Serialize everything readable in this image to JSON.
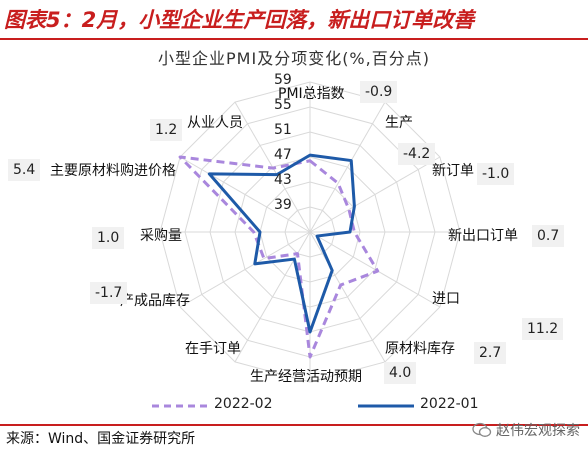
{
  "header": {
    "title": "图表5：2月，小型企业生产回落，新出口订单改善"
  },
  "footer": {
    "source": "来源：Wind、国金证券研究所",
    "watermark": "赵伟宏观探索"
  },
  "legend": {
    "series_a": "2022-02",
    "series_b": "2022-01"
  },
  "colors": {
    "series_a": "#a987dd",
    "series_b": "#1e5aa8",
    "accent": "#c81e1e",
    "grid": "#d9d9d9"
  },
  "chart_data": {
    "type": "radar",
    "title": "小型企业PMI及分项变化(%,百分点)",
    "rlim": [
      35,
      59
    ],
    "ticks": [
      "59",
      "55",
      "51",
      "47",
      "43",
      "39"
    ],
    "categories": [
      {
        "name": "PMI总指数",
        "change": "-0.9"
      },
      {
        "name": "生产",
        "change": "-4.2"
      },
      {
        "name": "新订单",
        "change": "-1.0"
      },
      {
        "name": "新出口订单",
        "change": "0.7"
      },
      {
        "name": "进口",
        "change": "11.2"
      },
      {
        "name": "原材料库存",
        "change": "2.7"
      },
      {
        "name": "生产经营活动预期",
        "change": "4.0"
      },
      {
        "name": "在手订单",
        "change": ""
      },
      {
        "name": "产成品库存",
        "change": "-1.7"
      },
      {
        "name": "采购量",
        "change": "1.0"
      },
      {
        "name": "主要原材料购进价格",
        "change": "5.4"
      },
      {
        "name": "从业人员",
        "change": "1.2"
      }
    ],
    "series": [
      {
        "name": "2022-02",
        "values": [
          46.4,
          44.0,
          42.2,
          42.1,
          47.5,
          44.8,
          55.0,
          39.0,
          43.5,
          44.0,
          59.0,
          46.8
        ]
      },
      {
        "name": "2022-01",
        "values": [
          47.3,
          48.2,
          43.2,
          41.4,
          36.3,
          42.1,
          51.0,
          40.0,
          45.2,
          43.0,
          53.6,
          45.6
        ]
      }
    ]
  }
}
